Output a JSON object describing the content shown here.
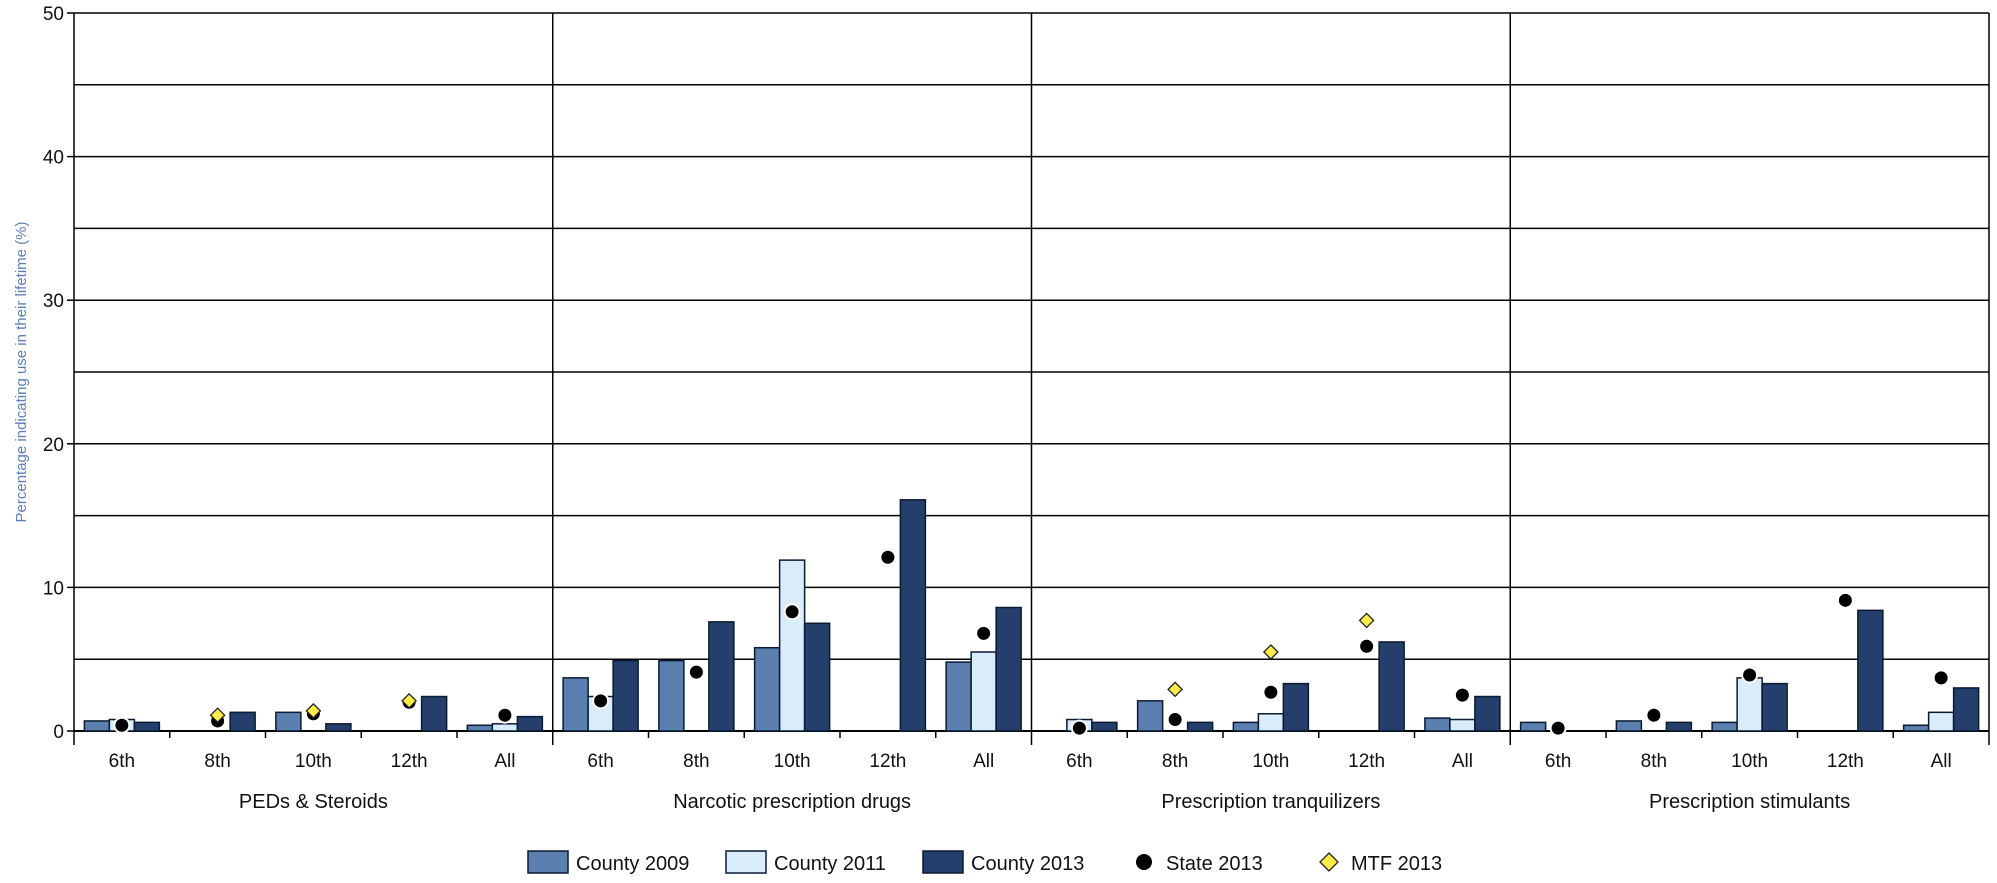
{
  "chart_data": {
    "type": "bar",
    "ylabel": "Percentage indicating use in their lifetime (%)",
    "ylim": [
      0,
      50
    ],
    "yticks": [
      0,
      10,
      20,
      30,
      40,
      50
    ],
    "grid": true,
    "legend_position": "bottom-center",
    "groups": [
      "PEDs & Steroids",
      "Narcotic prescription drugs",
      "Prescription tranquilizers",
      "Prescription stimulants"
    ],
    "categories": [
      "6th",
      "8th",
      "10th",
      "12th",
      "All"
    ],
    "series": [
      {
        "name": "County 2009",
        "kind": "bar",
        "color": "#5b7fae",
        "values": [
          [
            0.7,
            null,
            1.3,
            null,
            0.4
          ],
          [
            3.7,
            4.9,
            5.8,
            null,
            4.8
          ],
          [
            null,
            2.1,
            0.6,
            null,
            0.9
          ],
          [
            0.6,
            0.7,
            0.6,
            null,
            0.4
          ]
        ]
      },
      {
        "name": "County 2011",
        "kind": "bar",
        "color": "#d9ecfb",
        "values": [
          [
            0.8,
            null,
            null,
            null,
            0.5
          ],
          [
            2.4,
            null,
            11.9,
            null,
            5.5
          ],
          [
            0.8,
            null,
            1.2,
            null,
            0.8
          ],
          [
            null,
            null,
            3.7,
            null,
            1.3
          ]
        ]
      },
      {
        "name": "County 2013",
        "kind": "bar",
        "color": "#243f6b",
        "values": [
          [
            0.6,
            1.3,
            0.5,
            2.4,
            1.0
          ],
          [
            4.9,
            7.6,
            7.5,
            16.1,
            8.6
          ],
          [
            0.6,
            0.6,
            3.3,
            6.2,
            2.4
          ],
          [
            null,
            0.6,
            3.3,
            8.4,
            3.0
          ]
        ]
      },
      {
        "name": "State 2013",
        "kind": "circle",
        "color": "#000000",
        "values": [
          [
            0.4,
            0.7,
            1.2,
            2.0,
            1.1
          ],
          [
            2.1,
            4.1,
            8.3,
            12.1,
            6.8
          ],
          [
            0.2,
            0.8,
            2.7,
            5.9,
            2.5
          ],
          [
            0.2,
            1.1,
            3.9,
            9.1,
            3.7
          ]
        ]
      },
      {
        "name": "MTF 2013",
        "kind": "diamond",
        "color": "#ffec4a",
        "values": [
          [
            null,
            1.1,
            1.4,
            2.1,
            null
          ],
          [
            null,
            null,
            null,
            null,
            null
          ],
          [
            null,
            2.9,
            5.5,
            7.7,
            null
          ],
          [
            null,
            null,
            null,
            null,
            null
          ]
        ]
      }
    ]
  }
}
